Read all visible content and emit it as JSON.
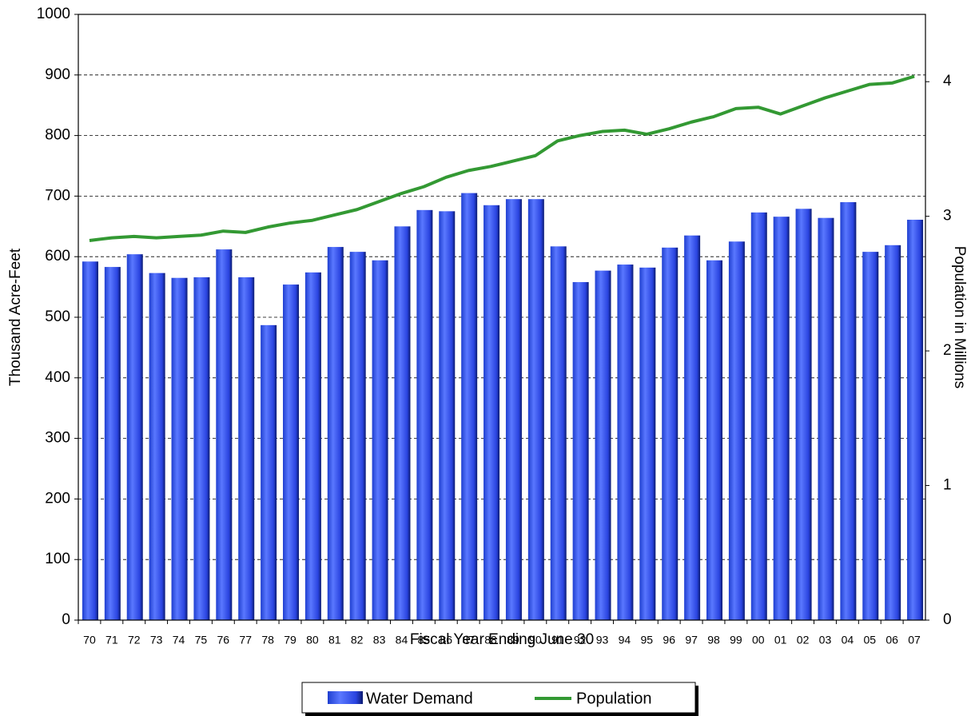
{
  "chart_data": {
    "type": "bar",
    "x_label": "Fiscal Year Ending June 30",
    "y_label": "Thousand Acre-Feet",
    "y2_label": "Population in Millions",
    "categories": [
      "70",
      "71",
      "72",
      "73",
      "74",
      "75",
      "76",
      "77",
      "78",
      "79",
      "80",
      "81",
      "82",
      "83",
      "84",
      "85",
      "86",
      "87",
      "88",
      "89",
      "90",
      "91",
      "92",
      "93",
      "94",
      "95",
      "96",
      "97",
      "98",
      "99",
      "00",
      "01",
      "02",
      "03",
      "04",
      "05",
      "06",
      "07"
    ],
    "series": [
      {
        "name": "Water Demand",
        "type": "bar",
        "color": "#3355ee",
        "values": [
          592,
          583,
          604,
          573,
          565,
          566,
          612,
          566,
          487,
          554,
          574,
          616,
          608,
          594,
          650,
          677,
          675,
          705,
          685,
          695,
          695,
          617,
          558,
          577,
          587,
          582,
          615,
          635,
          594,
          625,
          673,
          666,
          679,
          664,
          690,
          608,
          619,
          661
        ]
      },
      {
        "name": "Population",
        "type": "line",
        "axis": "y2",
        "color": "#339933",
        "values": [
          2.82,
          2.84,
          2.85,
          2.84,
          2.85,
          2.86,
          2.89,
          2.88,
          2.92,
          2.95,
          2.97,
          3.01,
          3.05,
          3.11,
          3.17,
          3.22,
          3.29,
          3.34,
          3.37,
          3.41,
          3.45,
          3.56,
          3.6,
          3.63,
          3.64,
          3.61,
          3.65,
          3.7,
          3.74,
          3.8,
          3.81,
          3.76,
          3.82,
          3.88,
          3.93,
          3.98,
          3.99,
          4.04
        ]
      }
    ],
    "ylim": [
      0,
      1000
    ],
    "yticks": [
      0,
      100,
      200,
      300,
      400,
      500,
      600,
      700,
      800,
      900,
      1000
    ],
    "y2lim": [
      0,
      4.5
    ],
    "y2ticks": [
      0,
      1,
      2,
      3,
      4
    ],
    "grid": true,
    "legend": "bottom"
  }
}
